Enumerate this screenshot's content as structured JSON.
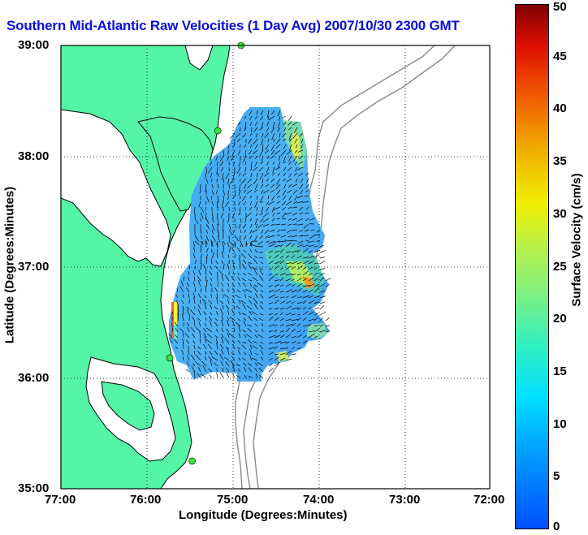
{
  "title": "Southern Mid-Atlantic Raw Velocities (1 Day Avg) 2007/10/30 2300 GMT",
  "xlabel": "Longitude (Degrees:Minutes)",
  "ylabel": "Latitude (Degrees:Minutes)",
  "x_ticks": [
    "77:00",
    "76:00",
    "75:00",
    "74:00",
    "73:00",
    "72:00"
  ],
  "y_ticks": [
    "39:00",
    "38:00",
    "37:00",
    "36:00",
    "35:00"
  ],
  "colorbar": {
    "label": "Surface Velocity (cm/s)",
    "ticks": [
      "0",
      "5",
      "10",
      "15",
      "20",
      "25",
      "30",
      "35",
      "40",
      "45",
      "50"
    ],
    "min": 0,
    "max": 50,
    "colormap": "jet"
  },
  "colors": {
    "title": "#0b10d8",
    "land": "#55f5a8",
    "coastline": "#000000",
    "bathymetry": "#8a8a8a",
    "station_marker": "#35e635",
    "velocity_field_base": "#4aa8f0"
  },
  "map": {
    "lon_range": [
      -77,
      -72
    ],
    "lat_range": [
      35,
      39
    ],
    "grid": "dotted",
    "stations": [
      {
        "lon": -74.9,
        "lat": 39.0
      },
      {
        "lon": -75.17,
        "lat": 38.23
      },
      {
        "lon": -75.73,
        "lat": 36.18
      },
      {
        "lon": -75.47,
        "lat": 35.25
      }
    ]
  }
}
